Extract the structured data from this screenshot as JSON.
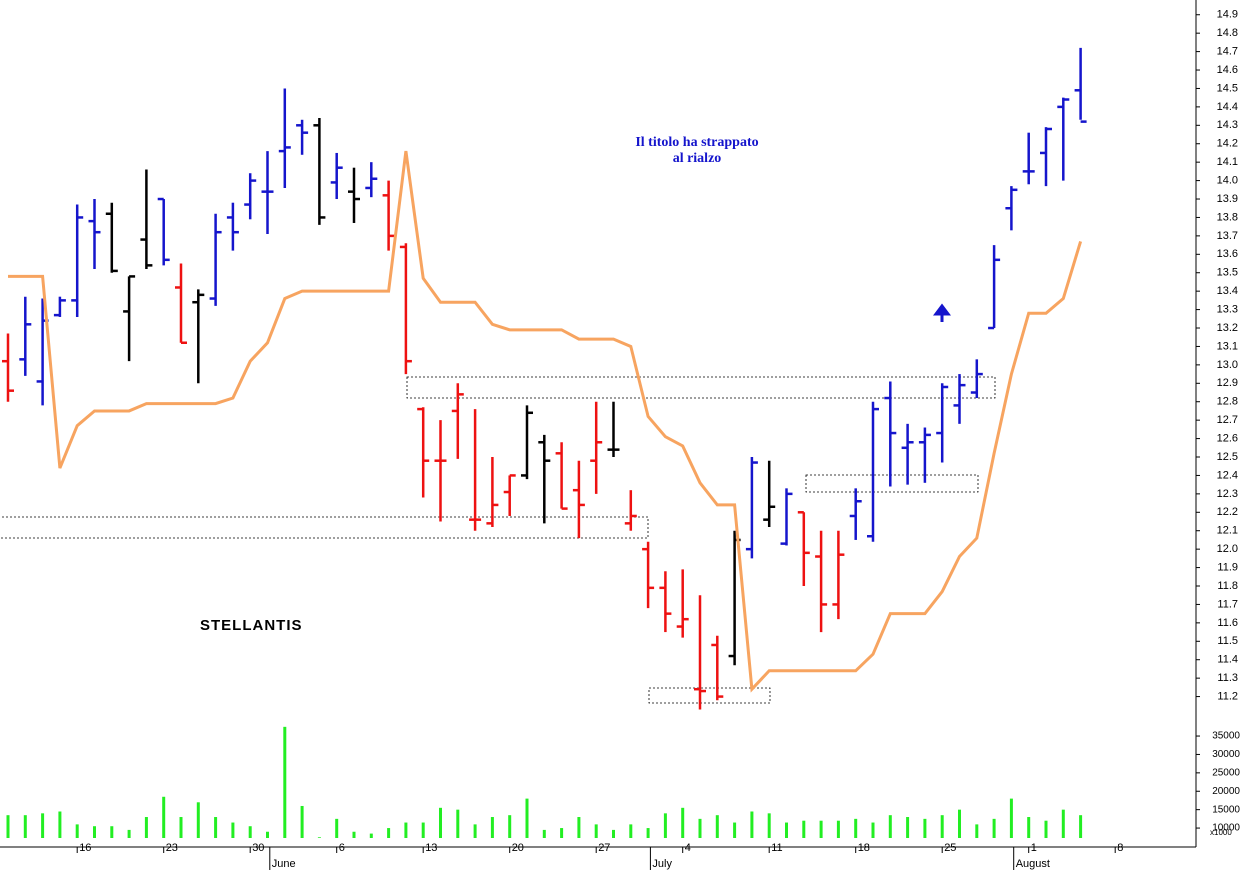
{
  "chart_data": {
    "type": "ohlc",
    "name": "STELLANTIS",
    "notes": [
      "Il titolo ha strappato",
      "al rialzo"
    ],
    "volume_unit": "x1000",
    "categories": [
      null,
      null,
      null,
      null,
      "16",
      null,
      null,
      null,
      null,
      "23",
      null,
      null,
      null,
      null,
      "30",
      null,
      null,
      null,
      null,
      "6",
      null,
      null,
      null,
      null,
      "13",
      null,
      null,
      null,
      null,
      "20",
      null,
      null,
      null,
      null,
      "27",
      null,
      null,
      null,
      null,
      "4",
      null,
      null,
      null,
      null,
      "11",
      null,
      null,
      null,
      null,
      "18",
      null,
      null,
      null,
      null,
      "25",
      null,
      null,
      null,
      null,
      "1",
      null,
      null,
      null,
      null,
      "8",
      null,
      null,
      null,
      null
    ],
    "months": [
      null,
      null,
      null,
      null,
      null,
      null,
      null,
      null,
      null,
      null,
      null,
      null,
      null,
      null,
      null,
      null,
      "June",
      null,
      null,
      null,
      null,
      null,
      null,
      null,
      null,
      null,
      null,
      null,
      null,
      null,
      null,
      null,
      null,
      null,
      null,
      null,
      null,
      null,
      "July",
      null,
      null,
      null,
      null,
      null,
      null,
      null,
      null,
      null,
      null,
      null,
      null,
      null,
      null,
      null,
      null,
      null,
      null,
      null,
      null,
      "August",
      null,
      null,
      null,
      null,
      null,
      null,
      null,
      null,
      null
    ],
    "high": [
      13.17,
      13.37,
      13.36,
      13.37,
      13.87,
      13.9,
      13.88,
      13.48,
      14.06,
      13.9,
      13.55,
      13.41,
      13.82,
      13.88,
      14.04,
      14.16,
      14.5,
      14.33,
      14.34,
      14.15,
      14.07,
      14.1,
      14.0,
      13.66,
      12.77,
      12.7,
      12.9,
      12.76,
      12.5,
      12.4,
      12.78,
      12.62,
      12.58,
      12.48,
      12.8,
      12.8,
      12.32,
      12.04,
      11.88,
      11.89,
      11.75,
      11.53,
      12.1,
      12.5,
      12.48,
      12.33,
      12.2,
      12.1,
      12.1,
      12.33,
      12.8,
      12.91,
      12.68,
      12.66,
      12.9,
      12.95,
      13.03,
      13.65,
      13.97,
      14.26,
      14.29,
      14.45,
      14.72,
      null,
      null,
      null,
      null,
      null,
      null
    ],
    "low": [
      12.8,
      12.94,
      12.78,
      13.26,
      13.26,
      13.52,
      13.5,
      13.02,
      13.52,
      13.54,
      13.12,
      12.9,
      13.32,
      13.62,
      13.79,
      13.71,
      13.96,
      14.14,
      13.76,
      13.9,
      13.77,
      13.91,
      13.62,
      12.95,
      12.28,
      12.15,
      12.49,
      12.1,
      12.12,
      12.18,
      12.38,
      12.14,
      12.22,
      12.06,
      12.3,
      12.5,
      12.1,
      11.68,
      11.55,
      11.52,
      11.13,
      11.18,
      11.37,
      11.95,
      12.12,
      12.02,
      11.8,
      11.55,
      11.62,
      12.05,
      12.04,
      12.34,
      12.35,
      12.36,
      12.47,
      12.68,
      12.82,
      13.2,
      13.73,
      13.98,
      13.97,
      14.0,
      14.33,
      null,
      null,
      null,
      null,
      null,
      null
    ],
    "open": [
      13.02,
      13.03,
      12.91,
      13.27,
      13.35,
      13.78,
      13.82,
      13.29,
      13.68,
      13.9,
      13.42,
      13.34,
      13.36,
      13.8,
      13.87,
      13.94,
      14.16,
      14.3,
      14.3,
      13.99,
      13.94,
      13.96,
      13.92,
      13.64,
      12.76,
      12.48,
      12.75,
      12.16,
      12.14,
      12.31,
      12.4,
      12.58,
      12.52,
      12.32,
      12.48,
      12.54,
      12.14,
      12.0,
      11.79,
      11.58,
      11.24,
      11.48,
      11.42,
      12.0,
      12.16,
      12.03,
      12.2,
      11.96,
      11.7,
      12.18,
      12.07,
      12.82,
      12.55,
      12.58,
      12.63,
      12.78,
      12.85,
      13.2,
      13.85,
      14.05,
      14.15,
      14.4,
      14.49,
      null,
      null,
      null,
      null,
      null,
      null
    ],
    "close": [
      12.86,
      13.22,
      13.24,
      13.35,
      13.8,
      13.72,
      13.51,
      13.48,
      13.54,
      13.57,
      13.12,
      13.38,
      13.72,
      13.72,
      14.0,
      13.94,
      14.18,
      14.26,
      13.8,
      14.07,
      13.9,
      14.01,
      13.7,
      13.02,
      12.48,
      12.48,
      12.84,
      12.16,
      12.24,
      12.4,
      12.74,
      12.48,
      12.22,
      12.24,
      12.58,
      12.54,
      12.18,
      11.79,
      11.65,
      11.62,
      11.23,
      11.2,
      12.05,
      12.47,
      12.23,
      12.3,
      11.98,
      11.7,
      11.97,
      12.26,
      12.76,
      12.63,
      12.58,
      12.62,
      12.88,
      12.89,
      12.95,
      13.57,
      13.95,
      14.05,
      14.28,
      14.44,
      14.32,
      null,
      null,
      null,
      null,
      null,
      null
    ],
    "bar_colors": [
      "#ee1111",
      "#1515cc",
      "#1515cc",
      "#1515cc",
      "#1515cc",
      "#1515cc",
      "#000000",
      "#000000",
      "#000000",
      "#1515cc",
      "#ee1111",
      "#000000",
      "#1515cc",
      "#1515cc",
      "#1515cc",
      "#1515cc",
      "#1515cc",
      "#1515cc",
      "#000000",
      "#1515cc",
      "#000000",
      "#1515cc",
      "#ee1111",
      "#ee1111",
      "#ee1111",
      "#ee1111",
      "#ee1111",
      "#ee1111",
      "#ee1111",
      "#ee1111",
      "#000000",
      "#000000",
      "#ee1111",
      "#ee1111",
      "#ee1111",
      "#000000",
      "#ee1111",
      "#ee1111",
      "#ee1111",
      "#ee1111",
      "#ee1111",
      "#ee1111",
      "#000000",
      "#1515cc",
      "#000000",
      "#1515cc",
      "#ee1111",
      "#ee1111",
      "#ee1111",
      "#1515cc",
      "#1515cc",
      "#1515cc",
      "#1515cc",
      "#1515cc",
      "#1515cc",
      "#1515cc",
      "#1515cc",
      "#1515cc",
      "#1515cc",
      "#1515cc",
      "#1515cc",
      "#1515cc",
      "#1515cc",
      null,
      null,
      null,
      null,
      null,
      null
    ],
    "trailing": {
      "color": "#f7a460",
      "values": [
        13.48,
        13.48,
        13.48,
        12.44,
        12.67,
        12.75,
        12.75,
        12.75,
        12.79,
        12.79,
        12.79,
        12.79,
        12.79,
        12.82,
        13.02,
        13.12,
        13.36,
        13.4,
        13.4,
        13.4,
        13.4,
        13.4,
        13.4,
        14.16,
        13.47,
        13.34,
        13.34,
        13.34,
        13.22,
        13.19,
        13.19,
        13.19,
        13.19,
        13.14,
        13.14,
        13.14,
        13.1,
        12.72,
        12.61,
        12.56,
        12.36,
        12.24,
        12.24,
        11.24,
        11.34,
        11.34,
        11.34,
        11.34,
        11.34,
        11.34,
        11.43,
        11.65,
        11.65,
        11.65,
        11.77,
        11.96,
        12.06,
        12.52,
        12.95,
        13.28,
        13.28,
        13.36,
        13.67,
        null,
        null,
        null,
        null,
        null,
        null
      ]
    },
    "ylim": [
      11.1,
      14.98
    ],
    "yticks": [
      11.2,
      11.3,
      11.4,
      11.5,
      11.6,
      11.7,
      11.8,
      11.9,
      {
        "value": 12,
        "label": "12.0"
      },
      12.1,
      12.2,
      12.3,
      12.4,
      12.5,
      12.6,
      12.7,
      12.8,
      12.9,
      {
        "value": 13,
        "label": "13.0"
      },
      13.1,
      13.2,
      13.3,
      13.4,
      13.5,
      13.6,
      13.7,
      13.8,
      13.9,
      {
        "value": 14,
        "label": "14.0"
      },
      14.1,
      14.2,
      14.3,
      14.4,
      14.5,
      14.6,
      14.7,
      14.8,
      14.9
    ],
    "volume": {
      "color": "#22ee22",
      "values": [
        13500,
        13500,
        14000,
        14500,
        11000,
        10500,
        10500,
        9500,
        13000,
        18500,
        13000,
        17000,
        13000,
        11500,
        10500,
        9000,
        37500,
        16000,
        7500,
        12500,
        9000,
        8500,
        10000,
        11500,
        11500,
        15500,
        15000,
        11000,
        13000,
        13500,
        18000,
        9500,
        10000,
        13000,
        11000,
        9500,
        11000,
        10000,
        14000,
        15500,
        12500,
        13500,
        11500,
        14500,
        14000,
        11500,
        12000,
        12000,
        12000,
        12500,
        11500,
        13500,
        13000,
        12500,
        13500,
        15000,
        11000,
        12500,
        18000,
        13000,
        12000,
        15000,
        13500,
        null,
        null,
        null,
        null,
        null,
        null
      ],
      "ylim": [
        7300,
        38000
      ],
      "yticks": [
        10000,
        15000,
        20000,
        25000,
        30000,
        35000
      ]
    }
  }
}
